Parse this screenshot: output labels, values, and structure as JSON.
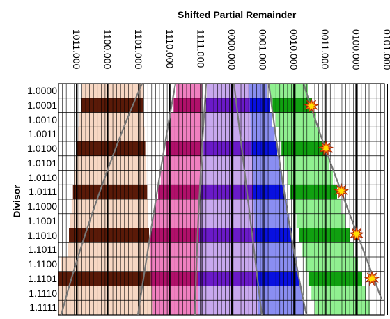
{
  "figure": {
    "title": "Shifted Partial Remainder",
    "ylabel": "Divisor"
  },
  "columns": [
    "1011.000",
    "1100.000",
    "1101.000",
    "1110.000",
    "1111.000",
    "0000.000",
    "0001.000",
    "0010.000",
    "0011.000",
    "0100.000",
    "0101.000"
  ],
  "rows": [
    "1.0000",
    "1.0001",
    "1.0010",
    "1.0011",
    "1.0100",
    "1.0101",
    "1.0110",
    "1.0111",
    "1.1000",
    "1.1001",
    "1.1010",
    "1.1011",
    "1.1100",
    "1.1101",
    "1.1110",
    "1.1111"
  ],
  "colors": {
    "band0_light": "#f7d7c3",
    "band0_dark": "#5a1a08",
    "band1_light": "#f080c0",
    "band1_dark": "#b0106a",
    "band2_light": "#c8a8ee",
    "band2_dark": "#6a1ac8",
    "band3_light": "#8a8ef2",
    "band3_dark": "#0810e0",
    "band4_light": "#90f090",
    "band4_dark": "#10a010",
    "curve": "#777777",
    "marker": "#f06010"
  }
}
